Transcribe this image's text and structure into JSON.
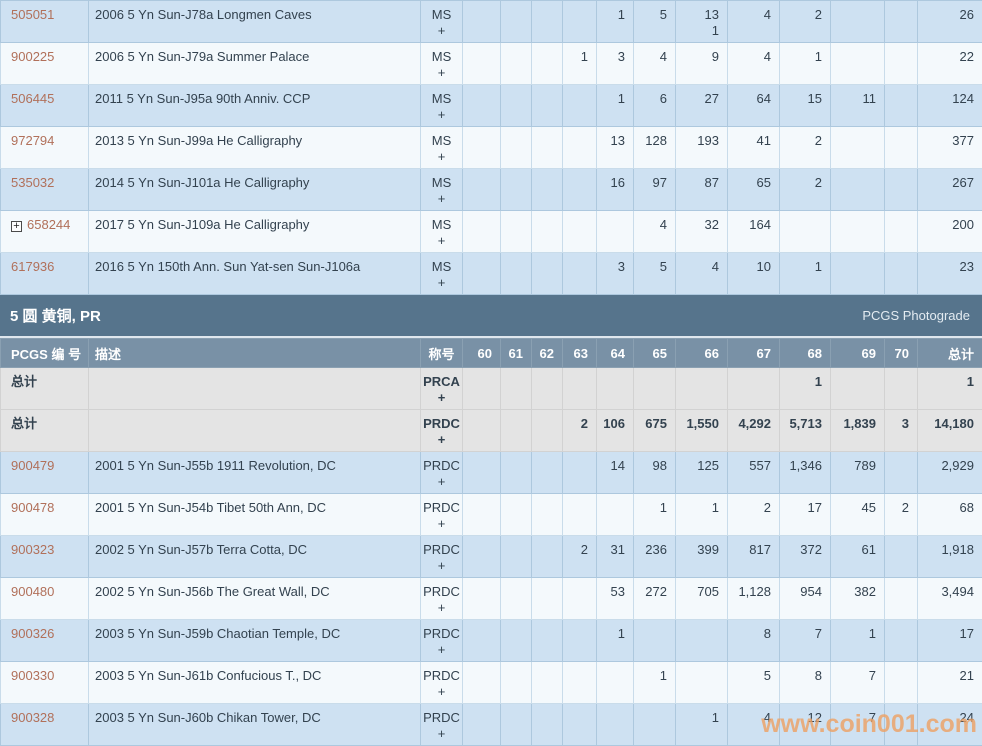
{
  "icons": {
    "expand": "+"
  },
  "watermark": "www.coin001.com",
  "section": {
    "title": "5 圆 黄铜, PR",
    "right_label": "PCGS Photograde"
  },
  "pr_headers": [
    "PCGS 编 号",
    "描述",
    "称号",
    "60",
    "61",
    "62",
    "63",
    "64",
    "65",
    "66",
    "67",
    "68",
    "69",
    "70",
    "总计"
  ],
  "ms_table": {
    "rows": [
      {
        "pcgs": "505051",
        "expand": false,
        "desc": "2006 5 Yn Sun-J78a Longmen Caves",
        "desig": "MS",
        "desig_plus": "+",
        "shade": "blue",
        "grades": [
          "",
          "",
          "",
          "",
          "1",
          "5",
          [
            "13",
            "1"
          ],
          "4",
          "2",
          "",
          ""
        ],
        "total": "26"
      },
      {
        "pcgs": "900225",
        "expand": false,
        "desc": "2006 5 Yn Sun-J79a Summer Palace",
        "desig": "MS",
        "desig_plus": "+",
        "shade": "white",
        "grades": [
          "",
          "",
          "",
          "1",
          "3",
          "4",
          "9",
          "4",
          "1",
          "",
          ""
        ],
        "total": "22"
      },
      {
        "pcgs": "506445",
        "expand": false,
        "desc": "2011 5 Yn Sun-J95a 90th Anniv. CCP",
        "desig": "MS",
        "desig_plus": "+",
        "shade": "blue",
        "grades": [
          "",
          "",
          "",
          "",
          "1",
          "6",
          "27",
          "64",
          "15",
          "11",
          ""
        ],
        "total": "124"
      },
      {
        "pcgs": "972794",
        "expand": false,
        "desc": "2013 5 Yn Sun-J99a He Calligraphy",
        "desig": "MS",
        "desig_plus": "+",
        "shade": "white",
        "grades": [
          "",
          "",
          "",
          "",
          "13",
          "128",
          "193",
          "41",
          "2",
          "",
          ""
        ],
        "total": "377"
      },
      {
        "pcgs": "535032",
        "expand": false,
        "desc": "2014 5 Yn Sun-J101a He Calligraphy",
        "desig": "MS",
        "desig_plus": "+",
        "shade": "blue",
        "grades": [
          "",
          "",
          "",
          "",
          "16",
          "97",
          "87",
          "65",
          "2",
          "",
          ""
        ],
        "total": "267"
      },
      {
        "pcgs": "658244",
        "expand": true,
        "desc": "2017 5 Yn Sun-J109a He Calligraphy",
        "desig": "MS",
        "desig_plus": "+",
        "shade": "white",
        "grades": [
          "",
          "",
          "",
          "",
          "",
          "4",
          "32",
          "164",
          "",
          "",
          ""
        ],
        "total": "200"
      },
      {
        "pcgs": "617936",
        "expand": false,
        "desc": "2016 5 Yn 150th Ann. Sun Yat-sen Sun-J106a",
        "desig": "MS",
        "desig_plus": "+",
        "shade": "blue",
        "grades": [
          "",
          "",
          "",
          "",
          "3",
          "5",
          "4",
          "10",
          "1",
          "",
          ""
        ],
        "total": "23"
      }
    ]
  },
  "pr_table": {
    "total_rows": [
      {
        "label": "总计",
        "desc": "",
        "desig": "PRCA",
        "desig_plus": "+",
        "shade": "gray",
        "grades": [
          "",
          "",
          "",
          "",
          "",
          "",
          "",
          "",
          "1",
          "",
          ""
        ],
        "total": "1"
      },
      {
        "label": "总计",
        "desc": "",
        "desig": "PRDC",
        "desig_plus": "+",
        "shade": "gray",
        "grades": [
          "",
          "",
          "",
          "2",
          "106",
          "675",
          "1,550",
          "4,292",
          "5,713",
          "1,839",
          "3"
        ],
        "total": "14,180"
      }
    ],
    "rows": [
      {
        "pcgs": "900479",
        "expand": false,
        "desc": "2001 5 Yn Sun-J55b 1911 Revolution, DC",
        "desig": "PRDC",
        "desig_plus": "+",
        "shade": "blue",
        "grades": [
          "",
          "",
          "",
          "",
          "14",
          "98",
          "125",
          "557",
          "1,346",
          "789",
          ""
        ],
        "total": "2,929"
      },
      {
        "pcgs": "900478",
        "expand": false,
        "desc": "2001 5 Yn Sun-J54b Tibet 50th Ann, DC",
        "desig": "PRDC",
        "desig_plus": "+",
        "shade": "white",
        "grades": [
          "",
          "",
          "",
          "",
          "",
          "1",
          "1",
          "2",
          "17",
          "45",
          "2"
        ],
        "total": "68"
      },
      {
        "pcgs": "900323",
        "expand": false,
        "desc": "2002 5 Yn Sun-J57b Terra Cotta, DC",
        "desig": "PRDC",
        "desig_plus": "+",
        "shade": "blue",
        "grades": [
          "",
          "",
          "",
          "2",
          "31",
          "236",
          "399",
          "817",
          "372",
          "61",
          ""
        ],
        "total": "1,918"
      },
      {
        "pcgs": "900480",
        "expand": false,
        "desc": "2002 5 Yn Sun-J56b The Great Wall, DC",
        "desig": "PRDC",
        "desig_plus": "+",
        "shade": "white",
        "grades": [
          "",
          "",
          "",
          "",
          "53",
          "272",
          "705",
          "1,128",
          "954",
          "382",
          ""
        ],
        "total": "3,494"
      },
      {
        "pcgs": "900326",
        "expand": false,
        "desc": "2003 5 Yn Sun-J59b Chaotian Temple, DC",
        "desig": "PRDC",
        "desig_plus": "+",
        "shade": "blue",
        "grades": [
          "",
          "",
          "",
          "",
          "1",
          "",
          "",
          "8",
          "7",
          "1",
          ""
        ],
        "total": "17"
      },
      {
        "pcgs": "900330",
        "expand": false,
        "desc": "2003 5 Yn Sun-J61b Confucious T., DC",
        "desig": "PRDC",
        "desig_plus": "+",
        "shade": "white",
        "grades": [
          "",
          "",
          "",
          "",
          "",
          "1",
          "",
          "5",
          "8",
          "7",
          ""
        ],
        "total": "21"
      },
      {
        "pcgs": "900328",
        "expand": false,
        "desc": "2003 5 Yn Sun-J60b Chikan Tower, DC",
        "desig": "PRDC",
        "desig_plus": "+",
        "shade": "blue",
        "grades": [
          "",
          "",
          "",
          "",
          "",
          "",
          "1",
          "4",
          "12",
          "7",
          ""
        ],
        "total": "24"
      }
    ]
  }
}
